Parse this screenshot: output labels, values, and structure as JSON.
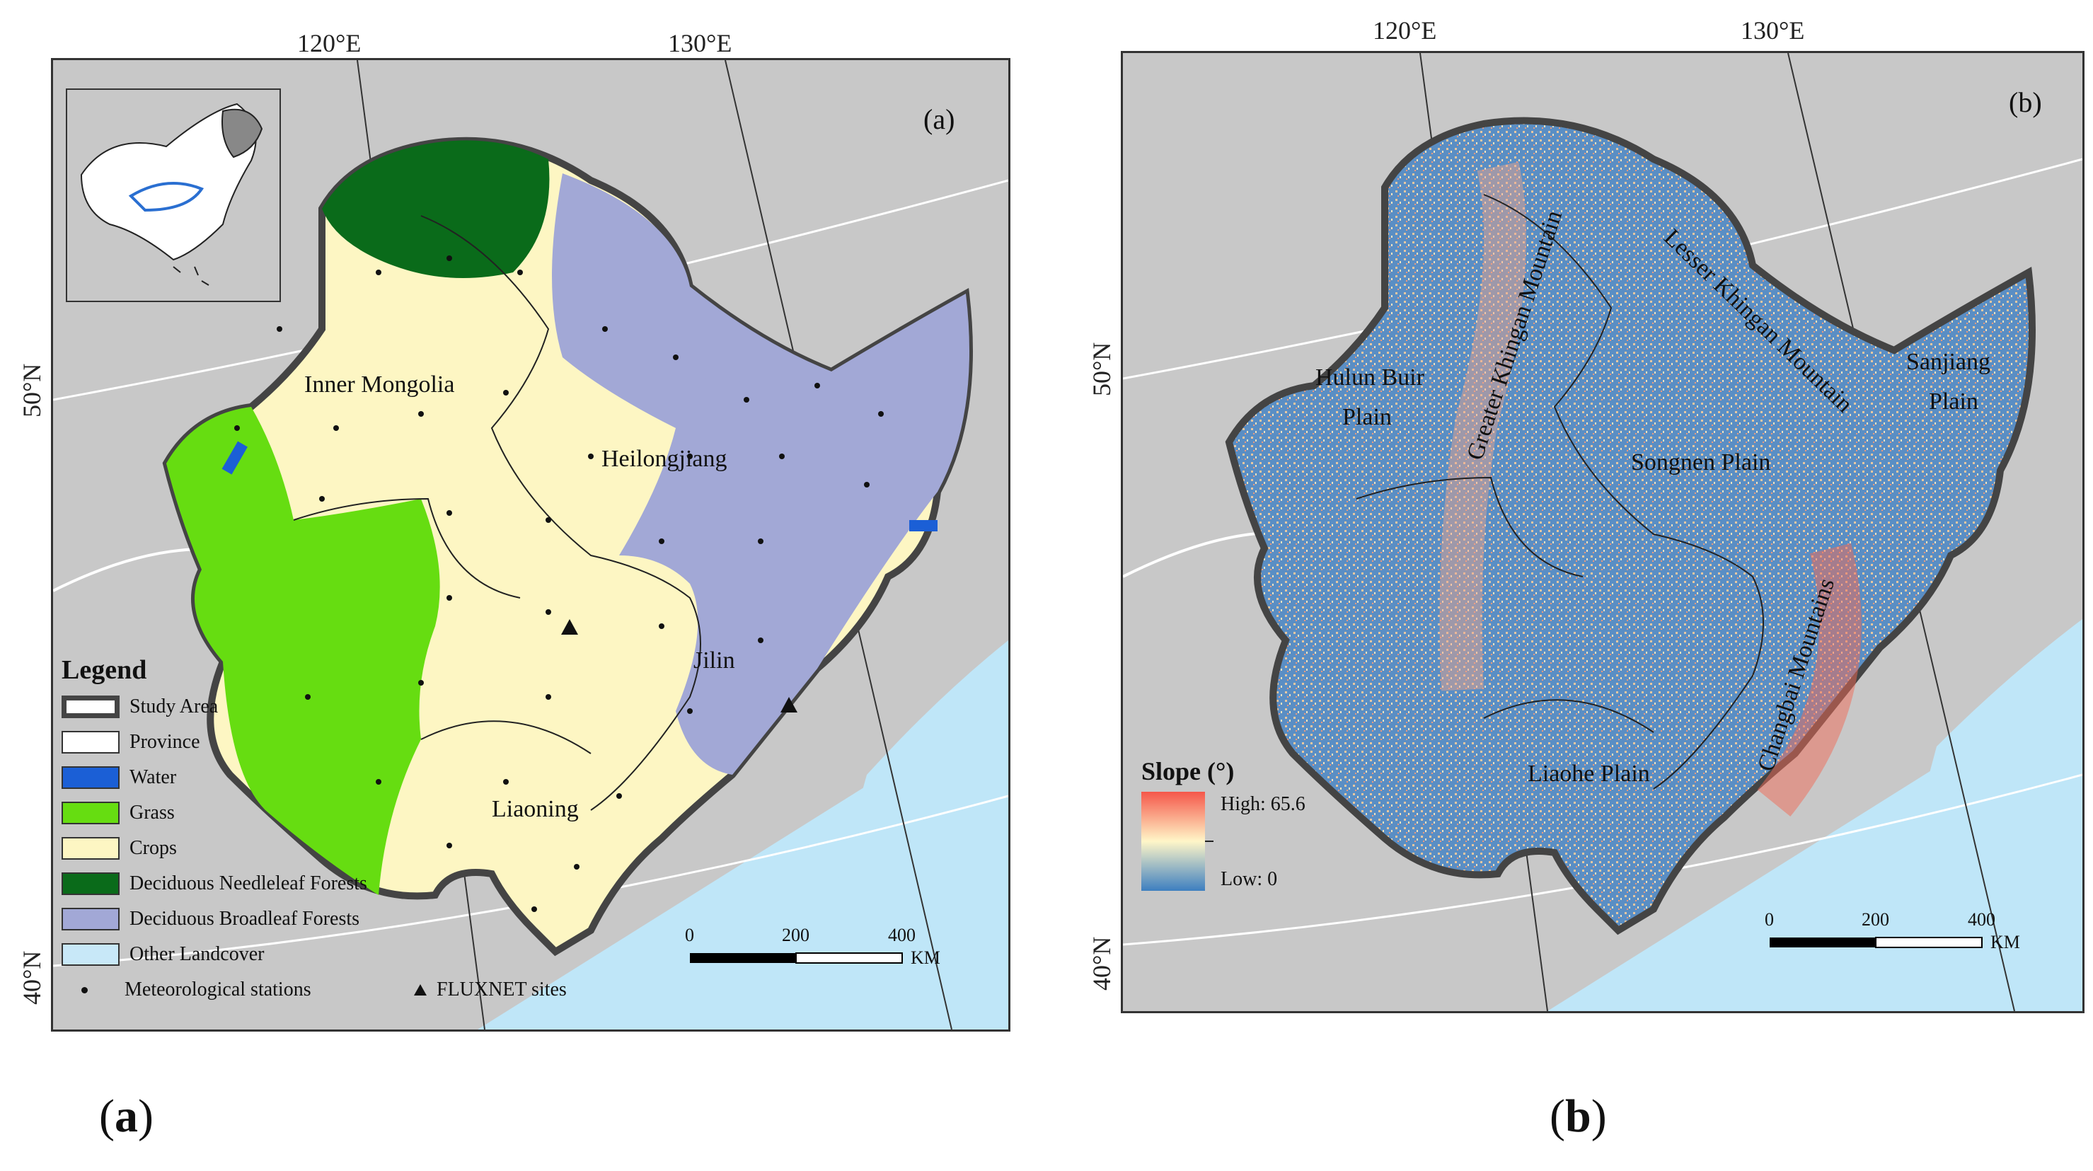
{
  "panel_a": {
    "letter": "(a)",
    "coords": {
      "lon1": "120°E",
      "lon2": "130°E",
      "lat1": "50°N",
      "lat2": "40°N"
    },
    "labels": {
      "inner_mongolia": "Inner Mongolia",
      "heilongjiang": "Heilongjiang",
      "jilin": "Jilin",
      "liaoning": "Liaoning"
    },
    "legend": {
      "title": "Legend",
      "items": [
        {
          "label": "Study Area",
          "color": "#ffffff"
        },
        {
          "label": "Province",
          "color": "#ffffff"
        },
        {
          "label": "Water",
          "color": "#1b5fd6"
        },
        {
          "label": "Grass",
          "color": "#66dd11"
        },
        {
          "label": "Crops",
          "color": "#fdf6c3"
        },
        {
          "label": "Deciduous Needleleaf Forests",
          "color": "#0a6b1a"
        },
        {
          "label": "Deciduous Broadleaf Forests",
          "color": "#a2a8d6"
        },
        {
          "label": "Other Landcover",
          "color": "#c8e8f8"
        }
      ],
      "stations": "Meteorological stations",
      "fluxnet": "FLUXNET sites"
    },
    "scale": {
      "t0": "0",
      "t1": "200",
      "t2": "400",
      "unit": "KM"
    }
  },
  "panel_b": {
    "letter": "(b)",
    "coords": {
      "lon1": "120°E",
      "lon2": "130°E",
      "lat1": "50°N",
      "lat2": "40°N"
    },
    "labels": {
      "hulun": "Hulun Buir",
      "hulun2": "Plain",
      "greater": "Greater Khingan Mountain",
      "lesser": "Lesser Khingan Mountain",
      "sanjiang": "Sanjiang",
      "sanjiang2": "Plain",
      "songnen": "Songnen Plain",
      "changbai": "Changbai Mountains",
      "liaohe": "Liaohe Plain"
    },
    "slope": {
      "title": "Slope (°)",
      "high": "High: 65.6",
      "low": "Low: 0",
      "high_color": "#f5574a",
      "low_color": "#3d7fc0"
    },
    "scale": {
      "t0": "0",
      "t1": "200",
      "t2": "400",
      "unit": "KM"
    }
  },
  "captions": {
    "a": "a",
    "b": "b"
  }
}
